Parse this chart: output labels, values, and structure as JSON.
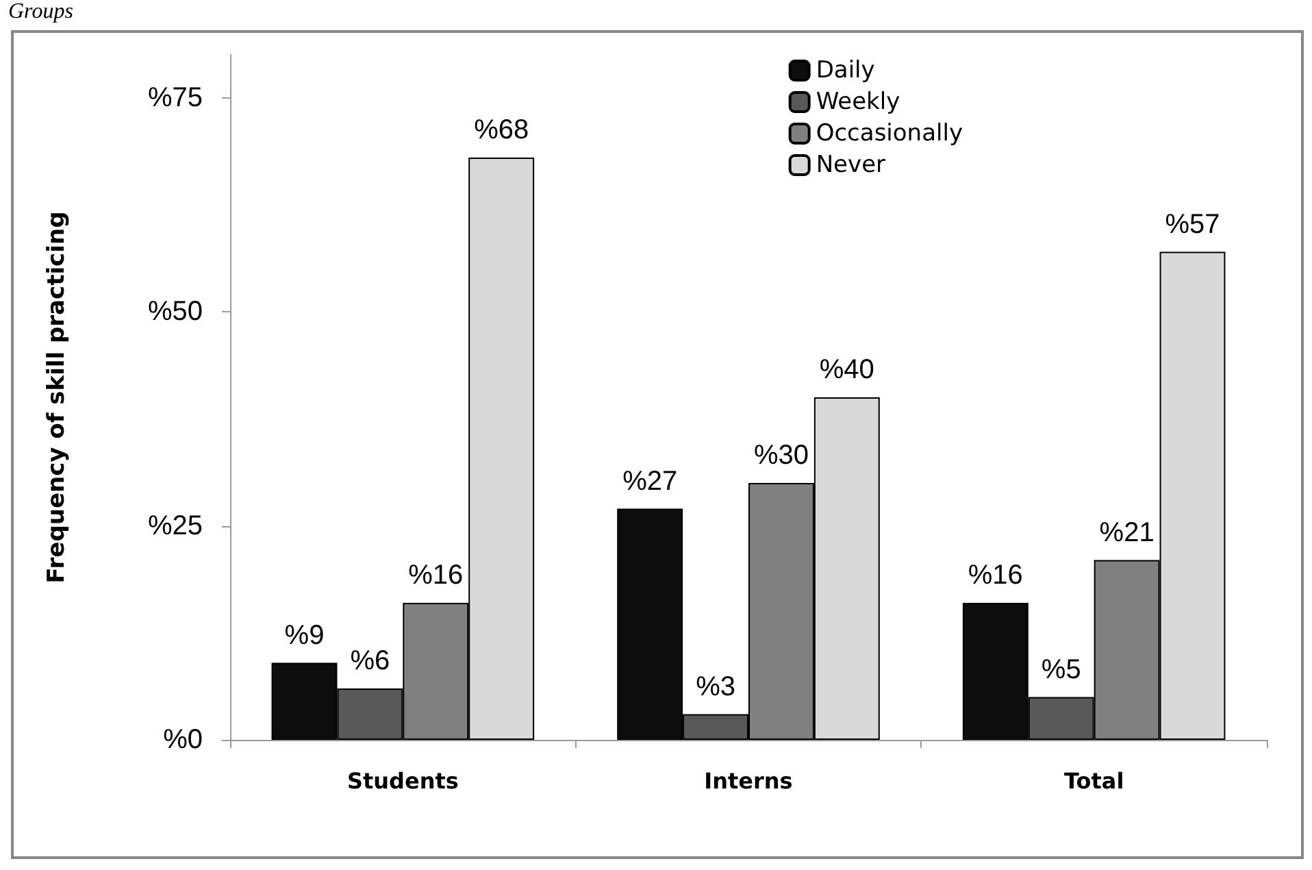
{
  "chart_data": {
    "type": "bar",
    "ylabel": "Frequency of skill practicing",
    "annotations": [
      "Groups"
    ],
    "categories": [
      "Students",
      "Interns",
      "Total"
    ],
    "series": [
      {
        "name": "Daily",
        "color": "#0d0d0d",
        "values": [
          9,
          27,
          16
        ],
        "value_labels": [
          "%9",
          "%27",
          "%16"
        ]
      },
      {
        "name": "Weekly",
        "color": "#595959",
        "values": [
          6,
          3,
          5
        ],
        "value_labels": [
          "%6",
          "%3",
          "%5"
        ]
      },
      {
        "name": "Occasionally",
        "color": "#808080",
        "values": [
          16,
          30,
          21
        ],
        "value_labels": [
          "%16",
          "%30",
          "%21"
        ]
      },
      {
        "name": "Never",
        "color": "#d9d9d9",
        "values": [
          68,
          40,
          57
        ],
        "value_labels": [
          "%68",
          "%40",
          "%57"
        ]
      }
    ],
    "ylim": [
      0,
      80
    ],
    "yticks": [
      {
        "value": 0,
        "label": "%0"
      },
      {
        "value": 25,
        "label": "%25"
      },
      {
        "value": 50,
        "label": "%50"
      },
      {
        "value": 75,
        "label": "%75"
      }
    ],
    "grid": false,
    "legend": "top right"
  }
}
